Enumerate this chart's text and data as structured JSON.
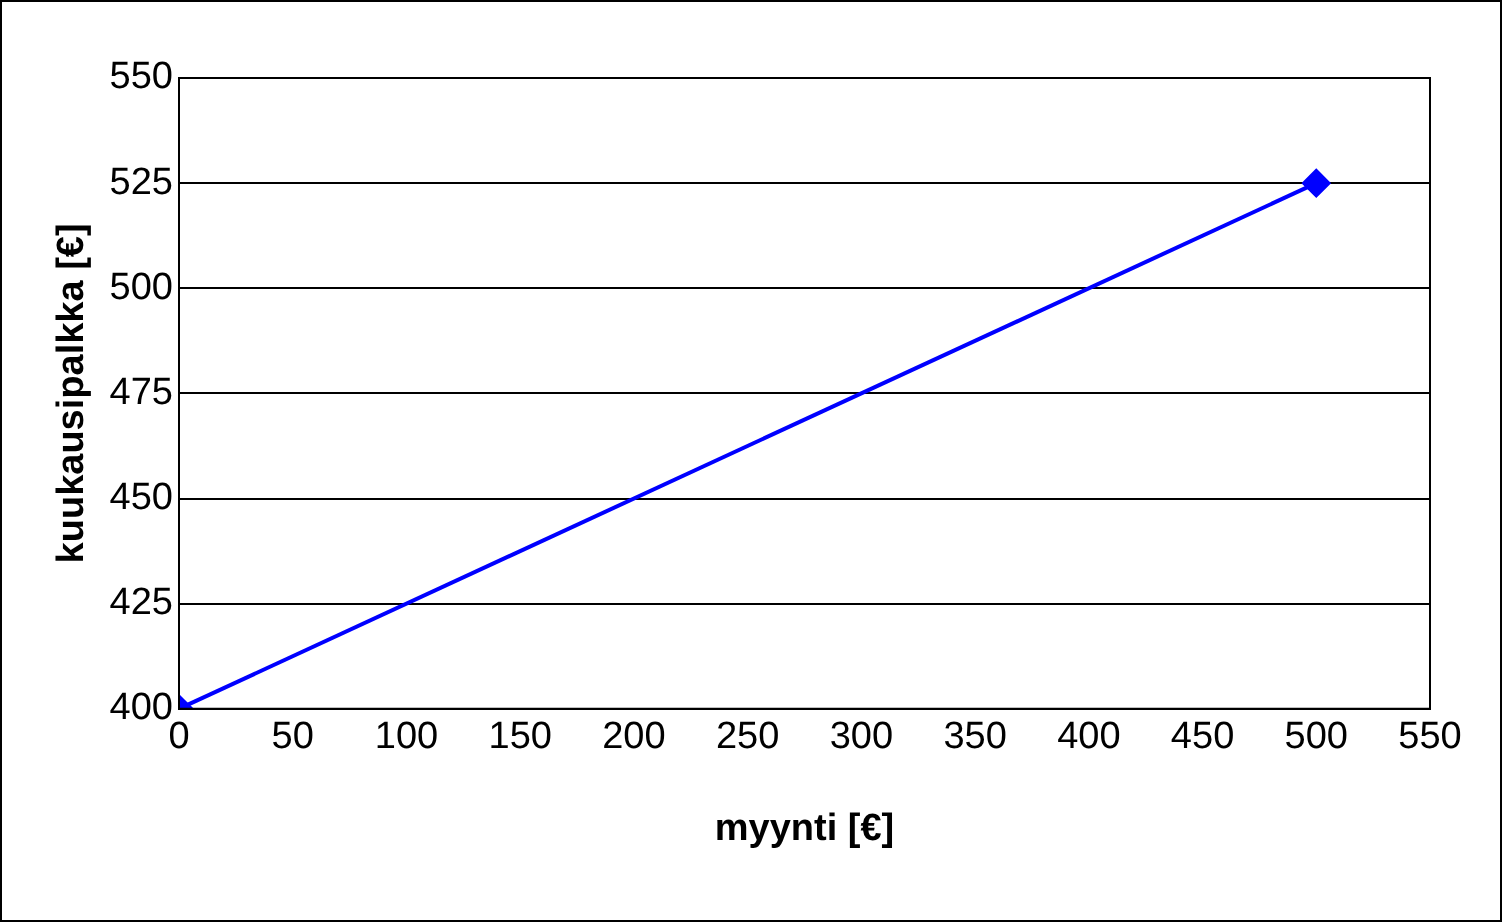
{
  "chart_data": {
    "type": "line",
    "xlabel": "myynti [€]",
    "ylabel": "kuukausipalkka [€]",
    "series": [
      {
        "color": "#0000ff",
        "x": [
          0,
          500
        ],
        "values": [
          400,
          525
        ]
      }
    ],
    "xlim": [
      0,
      550
    ],
    "xticks": [
      0,
      50,
      100,
      150,
      200,
      250,
      300,
      350,
      400,
      450,
      500,
      550
    ],
    "ylim": [
      400,
      550
    ],
    "yticks": [
      400,
      425,
      450,
      475,
      500,
      525,
      550
    ],
    "grid": "y",
    "legend": false,
    "marker": "diamond",
    "line_style": "solid"
  }
}
